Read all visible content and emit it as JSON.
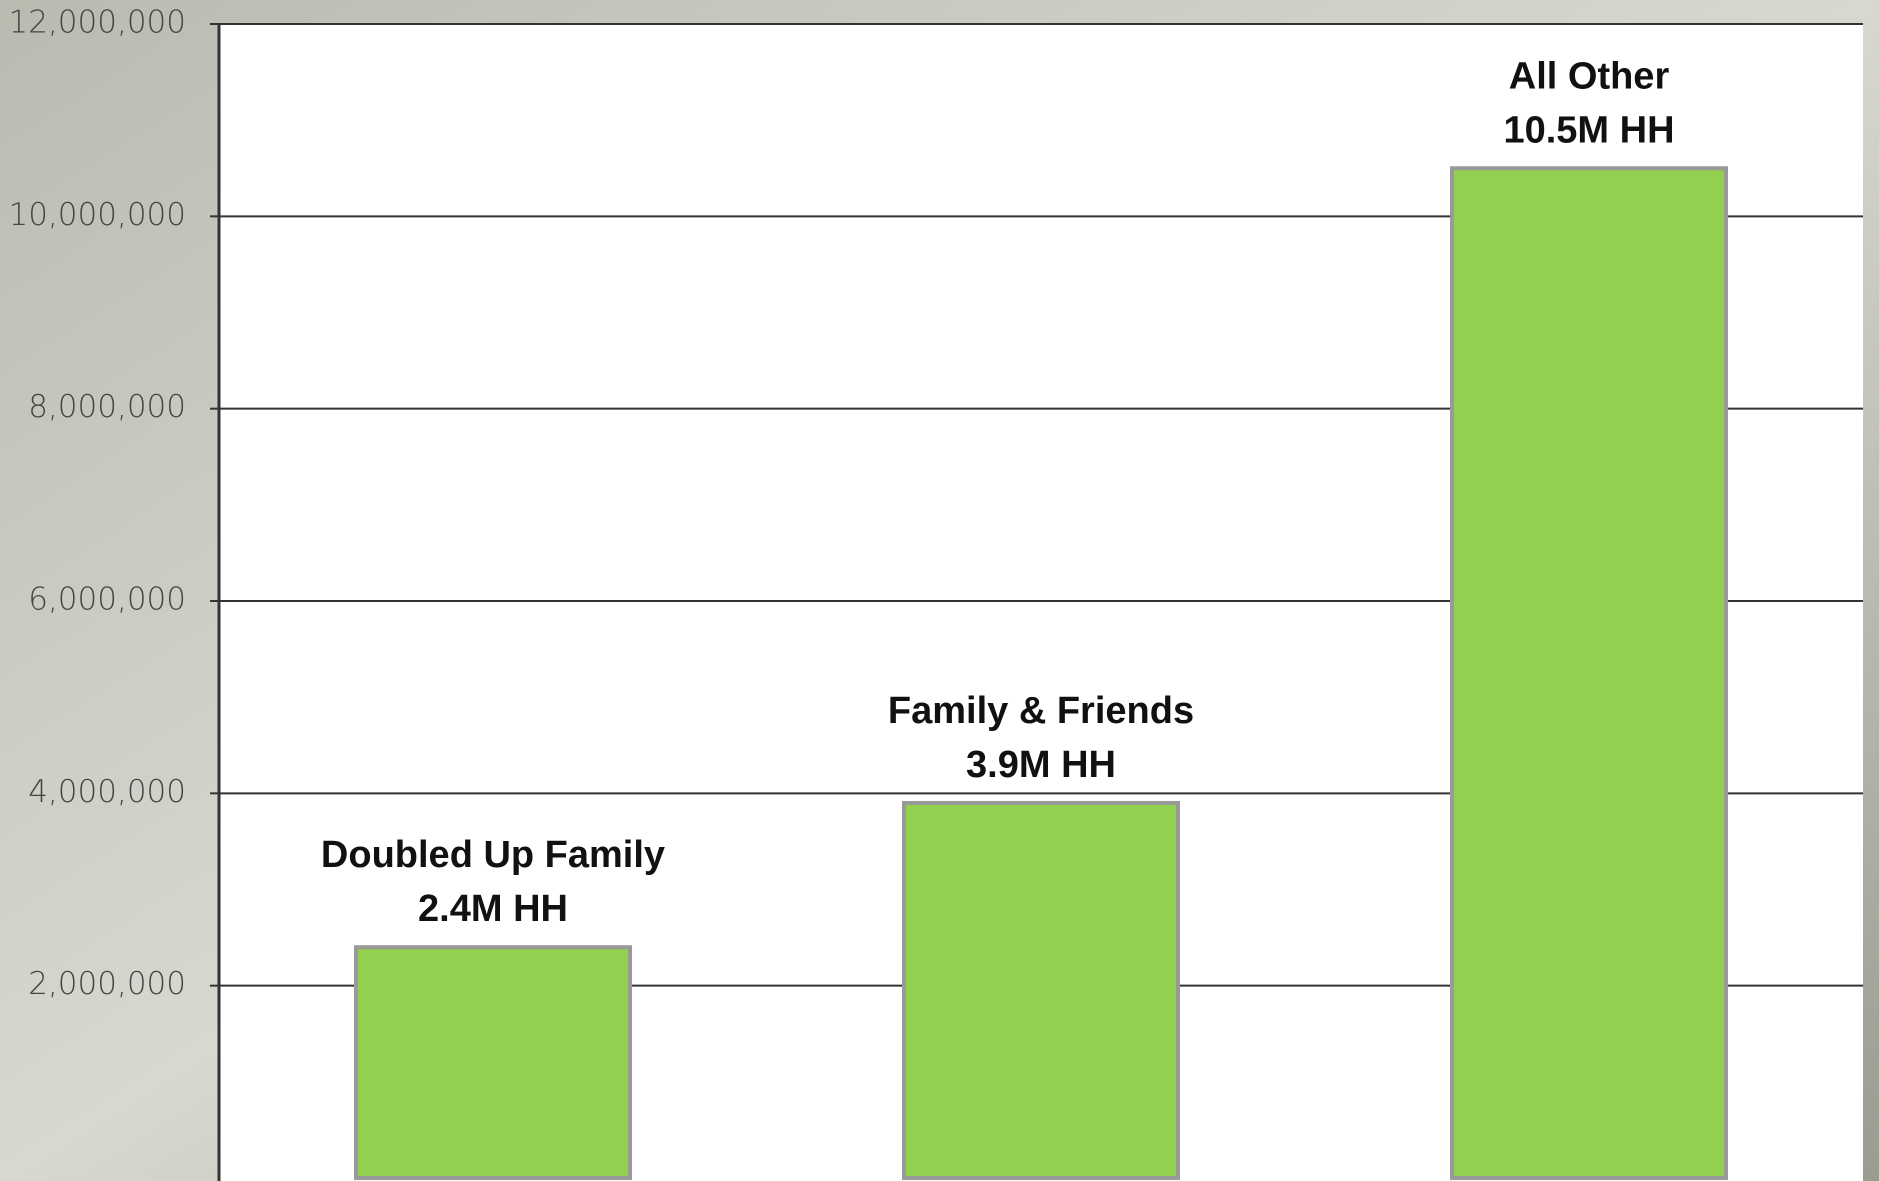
{
  "chart_data": {
    "type": "bar",
    "categories": [
      "Doubled Up Family",
      "Family & Friends",
      "All Other"
    ],
    "values": [
      2400000,
      3900000,
      10500000
    ],
    "value_labels": [
      "2.4M HH",
      "3.9M HH",
      "10.5M HH"
    ],
    "color": "#92d050",
    "ylim": [
      0,
      12000000
    ],
    "yticks": [
      {
        "value": 2000000,
        "label": "2,000,000"
      },
      {
        "value": 4000000,
        "label": "4,000,000"
      },
      {
        "value": 6000000,
        "label": "6,000,000"
      },
      {
        "value": 8000000,
        "label": "8,000,000"
      },
      {
        "value": 10000000,
        "label": "10,000,000"
      },
      {
        "value": 12000000,
        "label": "12,000,000"
      }
    ],
    "grid": true
  }
}
